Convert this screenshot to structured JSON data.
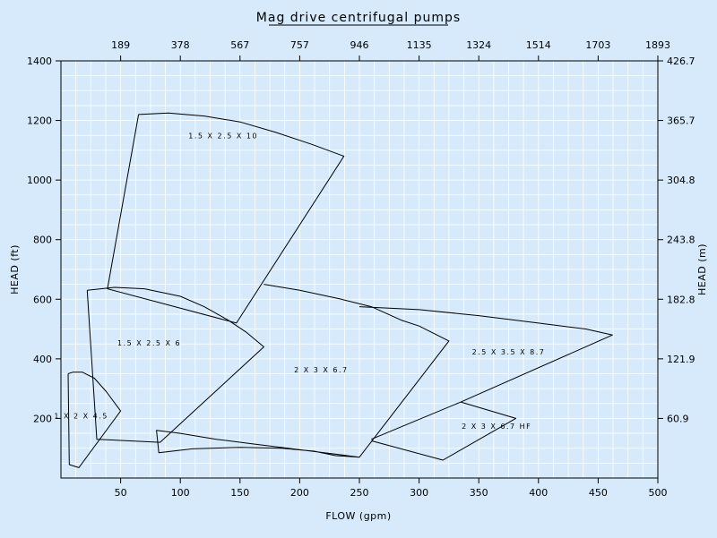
{
  "chart_data": {
    "type": "area",
    "title": "Mag drive centrifugal pumps",
    "xlabel": "FLOW (gpm)",
    "ylabel": "HEAD (ft)",
    "y2label": "HEAD (m)",
    "xlim": [
      0,
      500
    ],
    "ylim": [
      0,
      1400
    ],
    "x_ticks": [
      50,
      100,
      150,
      200,
      250,
      300,
      350,
      400,
      450,
      500
    ],
    "y_ticks": [
      200,
      400,
      600,
      800,
      1000,
      1200,
      1400
    ],
    "x2_tick_labels": [
      "189",
      "378",
      "567",
      "757",
      "946",
      "1135",
      "1324",
      "1514",
      "1703",
      "1893"
    ],
    "y2_tick_labels": [
      "60.9",
      "121.9",
      "182.8",
      "243.8",
      "304.8",
      "365.7",
      "426.7"
    ],
    "grid": true,
    "colors": {
      "background": "#d6eafb",
      "grid": "#ffffff",
      "line": "#000000"
    },
    "series": [
      {
        "name": "1 X 2 X 4.5",
        "label_at": [
          17,
          200
        ],
        "points": [
          [
            6,
            350
          ],
          [
            10,
            355
          ],
          [
            18,
            355
          ],
          [
            28,
            335
          ],
          [
            38,
            290
          ],
          [
            45,
            252
          ],
          [
            50,
            225
          ],
          [
            15,
            35
          ],
          [
            7,
            45
          ],
          [
            6,
            350
          ]
        ]
      },
      {
        "name": "1.5 X 2.5 X 6",
        "label_at": [
          74,
          445
        ],
        "points": [
          [
            22,
            630
          ],
          [
            45,
            640
          ],
          [
            70,
            635
          ],
          [
            100,
            610
          ],
          [
            120,
            575
          ],
          [
            140,
            530
          ],
          [
            155,
            490
          ],
          [
            170,
            440
          ],
          [
            83,
            120
          ],
          [
            30,
            130
          ],
          [
            22,
            630
          ]
        ]
      },
      {
        "name": "1.5 X 2.5 X 10",
        "label_at": [
          136,
          1140
        ],
        "points": [
          [
            65,
            1220
          ],
          [
            90,
            1225
          ],
          [
            120,
            1215
          ],
          [
            150,
            1195
          ],
          [
            180,
            1160
          ],
          [
            210,
            1120
          ],
          [
            237,
            1080
          ],
          [
            147,
            520
          ],
          [
            39,
            635
          ],
          [
            65,
            1220
          ]
        ]
      },
      {
        "name": "2 X 3 X 6.7",
        "label_at": [
          218,
          355
        ],
        "points": [
          [
            170,
            650
          ],
          [
            200,
            630
          ],
          [
            235,
            600
          ],
          [
            260,
            575
          ],
          [
            285,
            530
          ],
          [
            300,
            510
          ],
          [
            325,
            460
          ],
          [
            250,
            70
          ],
          [
            210,
            90
          ],
          [
            160,
            115
          ],
          [
            130,
            130
          ],
          [
            100,
            150
          ],
          [
            80,
            160
          ],
          [
            82,
            85
          ],
          [
            110,
            98
          ],
          [
            150,
            103
          ],
          [
            185,
            100
          ],
          [
            212,
            90
          ],
          [
            230,
            75
          ],
          [
            250,
            70
          ]
        ]
      },
      {
        "name": "2.5 X 3.5 X 8.7",
        "label_at": [
          375,
          415
        ],
        "points": [
          [
            250,
            575
          ],
          [
            300,
            565
          ],
          [
            350,
            545
          ],
          [
            400,
            520
          ],
          [
            440,
            500
          ],
          [
            462,
            480
          ],
          [
            335,
            255
          ],
          [
            260,
            130
          ]
        ]
      },
      {
        "name": "2 X 3 X 6.7 HF",
        "label_at": [
          365,
          165
        ],
        "points": [
          [
            335,
            255
          ],
          [
            381,
            200
          ],
          [
            320,
            60
          ],
          [
            260,
            125
          ]
        ]
      }
    ]
  }
}
